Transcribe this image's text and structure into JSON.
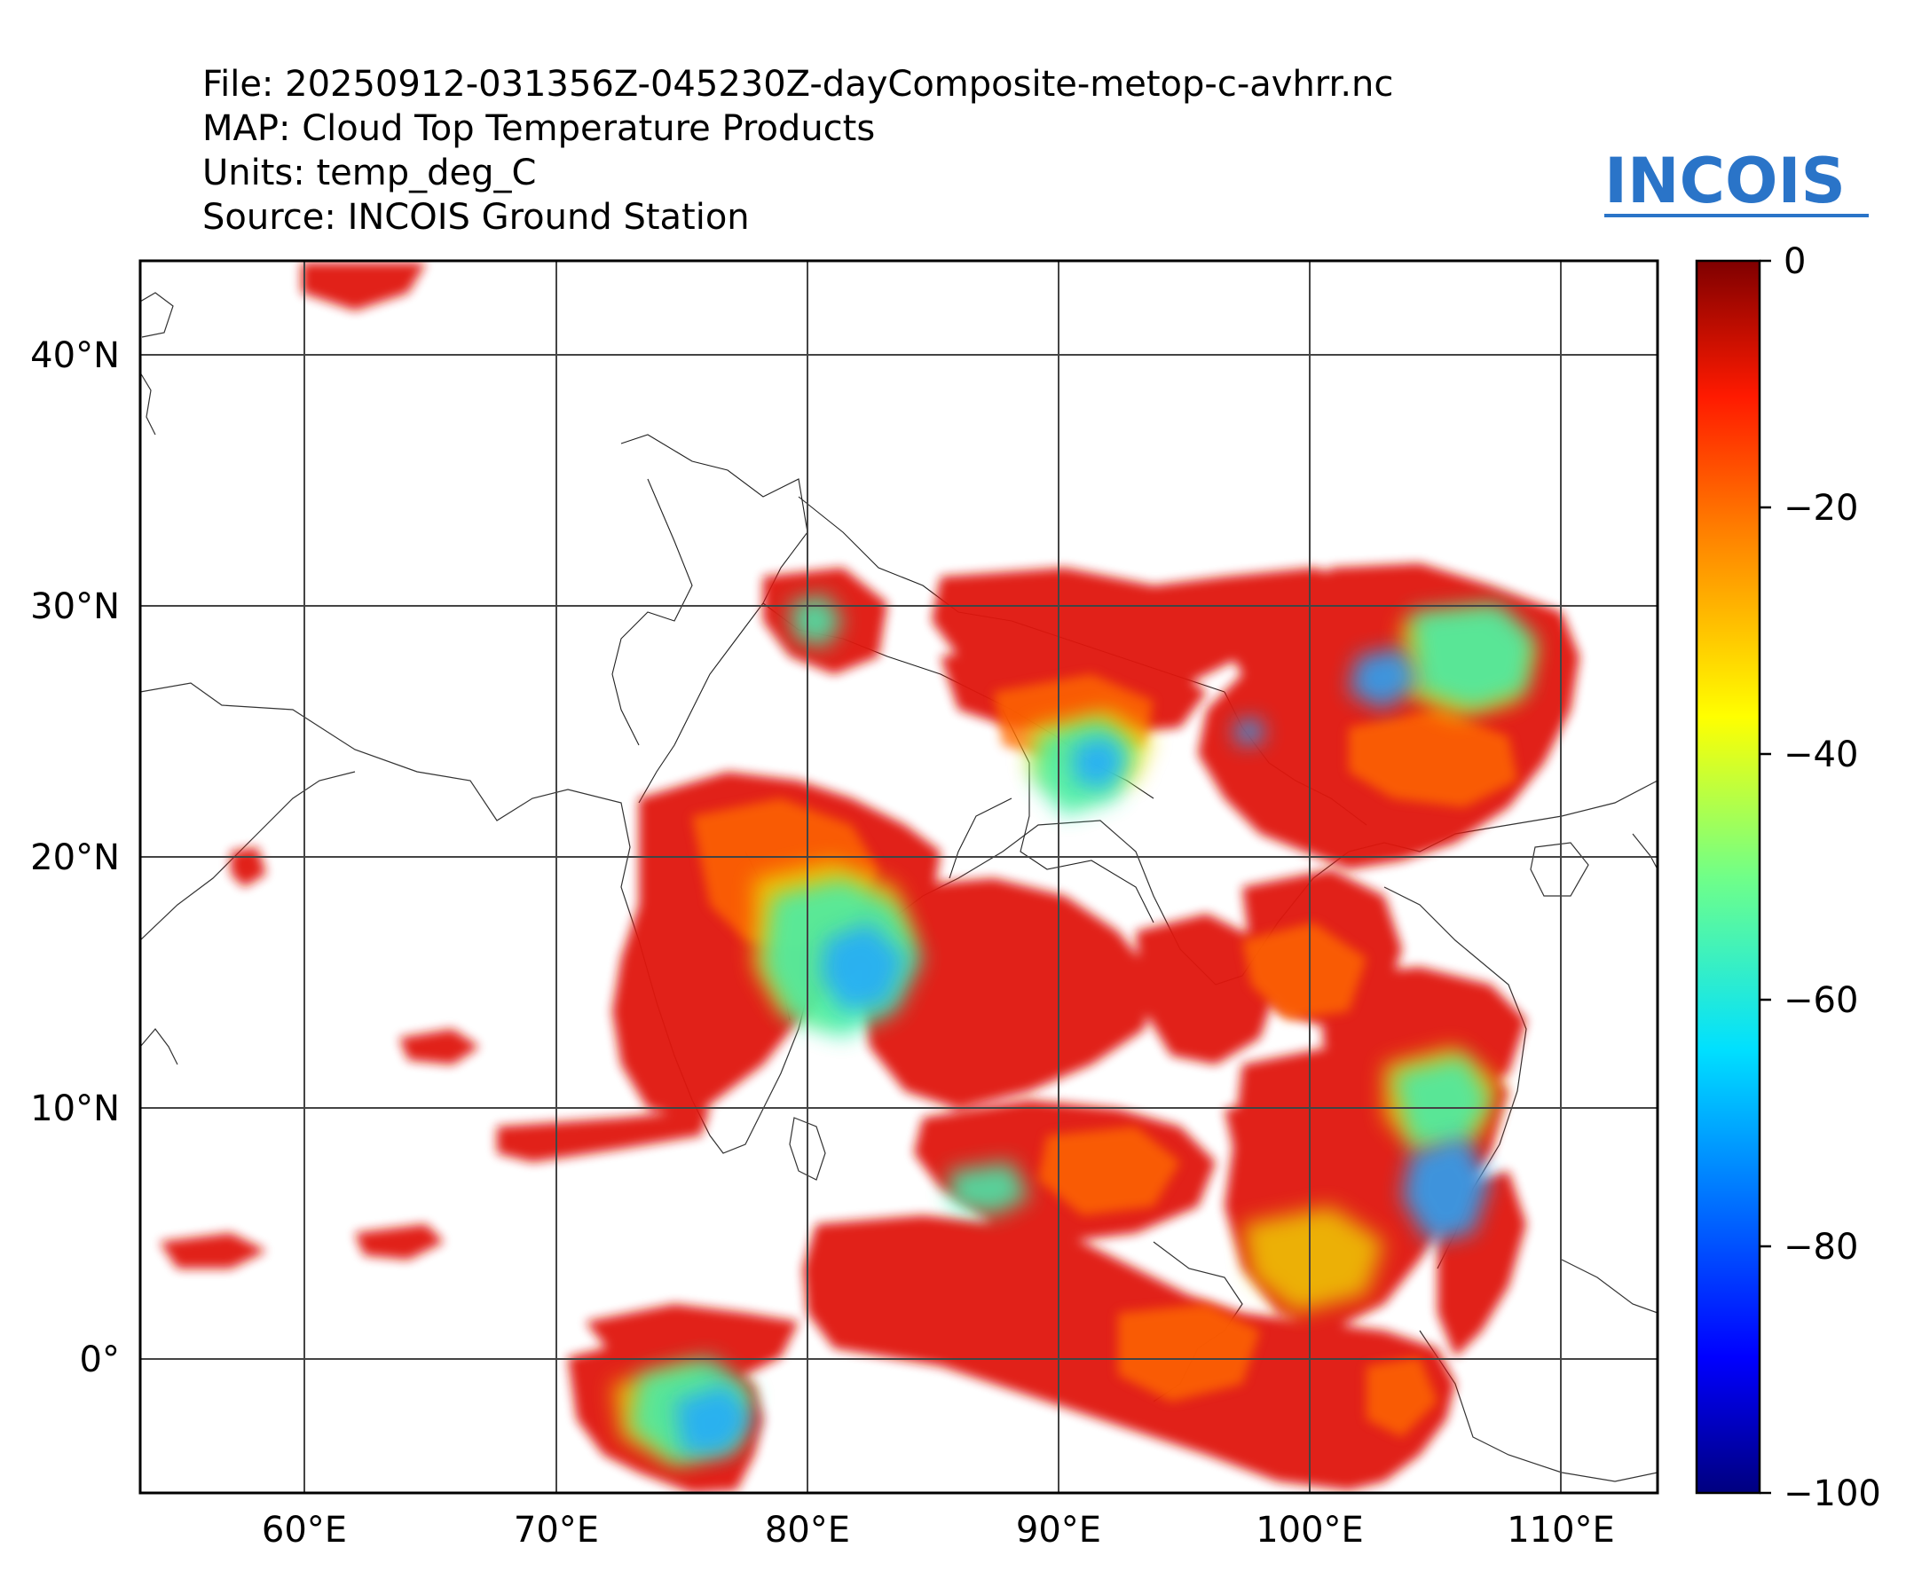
{
  "header": {
    "file_line": "File: 20250912-031356Z-045230Z-dayComposite-metop-c-avhrr.nc",
    "map_line": "MAP: Cloud Top Temperature Products",
    "units_line": "Units: temp_deg_C",
    "source_line": "Source: INCOIS Ground Station"
  },
  "logo": {
    "text": "INCOIS",
    "color": "#2a74c8"
  },
  "map": {
    "lon_ticks": [
      "60°E",
      "70°E",
      "80°E",
      "90°E",
      "100°E",
      "110°E"
    ],
    "lat_ticks": [
      "40°N",
      "30°N",
      "20°N",
      "10°N",
      "0°"
    ],
    "lon_range": [
      53.5,
      114
    ],
    "lat_range": [
      -5.3,
      43.8
    ],
    "grid": true
  },
  "colorbar": {
    "ticks": [
      "0",
      "−20",
      "−40",
      "−60",
      "−80",
      "−100"
    ],
    "range": [
      -100,
      0
    ],
    "colormap": "jet"
  }
}
